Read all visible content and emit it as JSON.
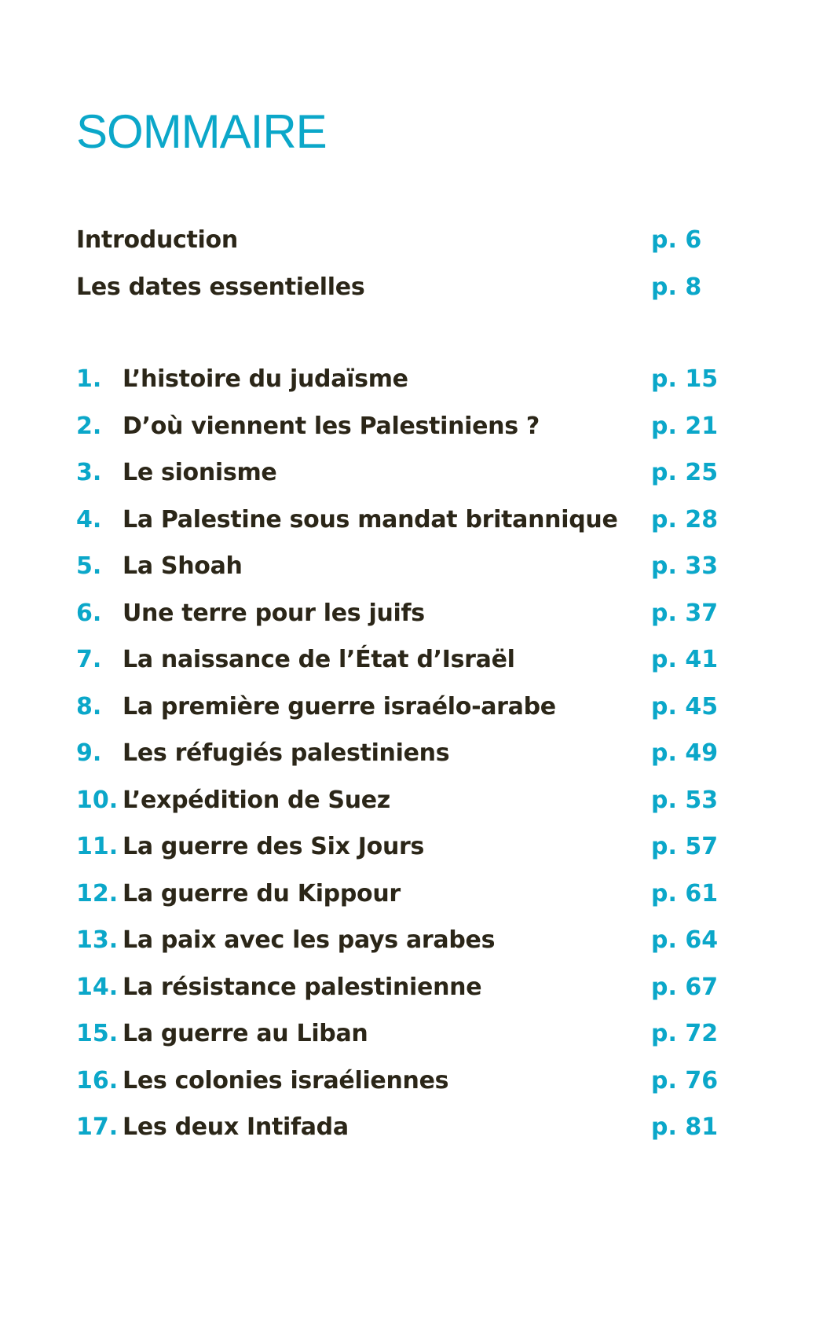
{
  "title": "SOMMAIRE",
  "colors": {
    "accent": "#0ba7c9",
    "text": "#2b2618"
  },
  "front_matter": [
    {
      "label": "Introduction",
      "page": "p. 6"
    },
    {
      "label": "Les dates essentielles",
      "page": "p. 8"
    }
  ],
  "chapters": [
    {
      "num": "1.",
      "label": "L’histoire du judaïsme",
      "page": "p. 15"
    },
    {
      "num": "2.",
      "label": "D’où viennent les Palestiniens ?",
      "page": "p. 21"
    },
    {
      "num": "3.",
      "label": "Le sionisme",
      "page": "p. 25"
    },
    {
      "num": "4.",
      "label": "La Palestine sous mandat britannique",
      "page": "p. 28"
    },
    {
      "num": "5.",
      "label": "La Shoah",
      "page": "p. 33"
    },
    {
      "num": "6.",
      "label": "Une terre pour les juifs",
      "page": "p. 37"
    },
    {
      "num": "7.",
      "label": "La naissance de l’État d’Israël",
      "page": "p. 41"
    },
    {
      "num": "8.",
      "label": "La première guerre israélo-arabe",
      "page": "p. 45"
    },
    {
      "num": "9.",
      "label": "Les réfugiés palestiniens",
      "page": "p. 49"
    },
    {
      "num": "10.",
      "label": "L’expédition de Suez",
      "page": "p. 53"
    },
    {
      "num": "11.",
      "label": "La guerre des Six Jours",
      "page": "p. 57"
    },
    {
      "num": "12.",
      "label": "La guerre du Kippour",
      "page": "p. 61"
    },
    {
      "num": "13.",
      "label": "La paix avec les pays arabes",
      "page": "p. 64"
    },
    {
      "num": "14.",
      "label": "La résistance palestinienne",
      "page": "p. 67"
    },
    {
      "num": "15.",
      "label": "La guerre au Liban",
      "page": "p. 72"
    },
    {
      "num": "16.",
      "label": "Les colonies israéliennes",
      "page": "p. 76"
    },
    {
      "num": "17.",
      "label": "Les deux Intifada",
      "page": "p. 81"
    }
  ]
}
